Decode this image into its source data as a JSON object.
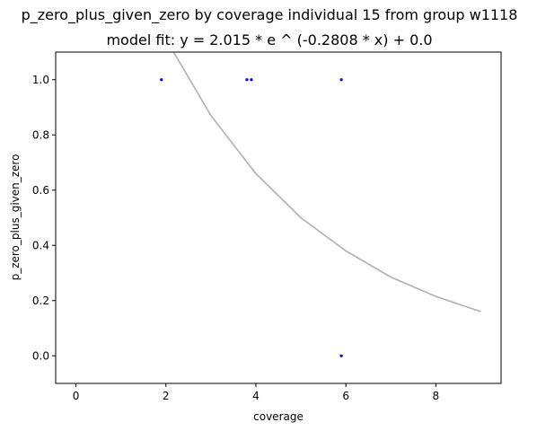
{
  "chart_data": {
    "type": "scatter",
    "title": "p_zero_plus_given_zero by coverage individual 15 from group w1118",
    "subtitle": "model fit: y = 2.015 * e ^ (-0.2808 * x) + 0.0",
    "xlabel": "coverage",
    "ylabel": "p_zero_plus_given_zero",
    "xlim": [
      -0.45,
      9.45
    ],
    "ylim": [
      -0.1,
      1.1
    ],
    "xticks": [
      0,
      2,
      4,
      6,
      8
    ],
    "yticks": [
      0.0,
      0.2,
      0.4,
      0.6,
      0.8,
      1.0
    ],
    "xtick_labels": [
      "0",
      "2",
      "4",
      "6",
      "8"
    ],
    "ytick_labels": [
      "0.0",
      "0.2",
      "0.4",
      "0.6",
      "0.8",
      "1.0"
    ],
    "grid": false,
    "series": [
      {
        "kind": "scatter",
        "color": "#0000ff",
        "x": [
          1.9,
          3.8,
          3.9,
          5.9,
          5.9
        ],
        "y": [
          1.0,
          1.0,
          1.0,
          1.0,
          0.0
        ]
      },
      {
        "kind": "line",
        "color": "#b0b0b0",
        "x": [
          2.1,
          3,
          4,
          5,
          6,
          7,
          8,
          9
        ],
        "y": [
          1.12,
          0.87,
          0.66,
          0.5,
          0.38,
          0.285,
          0.215,
          0.16
        ]
      }
    ]
  }
}
